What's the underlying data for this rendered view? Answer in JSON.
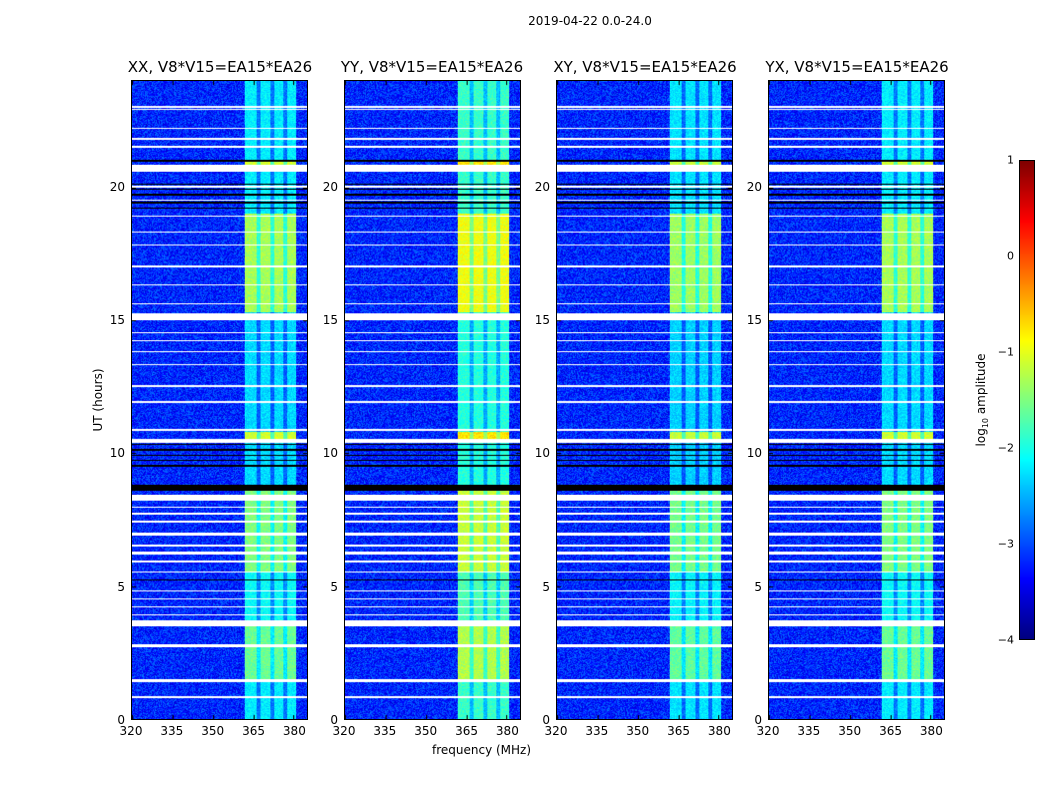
{
  "chart_data": {
    "type": "heatmap",
    "title": "2019-04-22 0.0-24.0",
    "xlabel": "frequency (MHz)",
    "ylabel": "UT (hours)",
    "xlim": [
      320,
      385
    ],
    "ylim": [
      0,
      24
    ],
    "xticks": [
      "320",
      "335",
      "350",
      "365",
      "380"
    ],
    "xtick_values": [
      320,
      335,
      350,
      365,
      380
    ],
    "yticks": [
      "0",
      "5",
      "10",
      "15",
      "20"
    ],
    "ytick_values": [
      0,
      5,
      10,
      15,
      20
    ],
    "panels": [
      {
        "title": "XX, V8*V15=EA15*EA26",
        "boost": 0
      },
      {
        "title": "YY, V8*V15=EA15*EA26",
        "boost": 0.35
      },
      {
        "title": "XY, V8*V15=EA15*EA26",
        "boost": -0.05
      },
      {
        "title": "YX, V8*V15=EA15*EA26",
        "boost": 0
      }
    ],
    "colorbar": {
      "label": "log10 amplitude",
      "label_main": "log",
      "label_sub": "10",
      "label_rest": " amplitude",
      "range": [
        -4,
        1
      ],
      "ticks": [
        "1",
        "0",
        "−1",
        "−2",
        "−3",
        "−4"
      ],
      "tick_values": [
        1,
        0,
        -1,
        -2,
        -3,
        -4
      ],
      "colormap": "jet"
    },
    "background_level": -3.2,
    "rfi_band_mhz": [
      362,
      381
    ],
    "rfi_gaps_mhz": [
      367,
      372,
      377
    ],
    "rfi_segments": [
      {
        "t0": 0,
        "t1": 1.5,
        "level": -2.2
      },
      {
        "t0": 1.5,
        "t1": 3.6,
        "level": -1.6
      },
      {
        "t0": 3.6,
        "t1": 5.5,
        "level": -2.1
      },
      {
        "t0": 5.5,
        "t1": 8.8,
        "level": -1.5
      },
      {
        "t0": 8.8,
        "t1": 10.5,
        "level": -2.3
      },
      {
        "t0": 10.5,
        "t1": 10.8,
        "level": -1.1
      },
      {
        "t0": 10.8,
        "t1": 15.3,
        "level": -2.3
      },
      {
        "t0": 15.3,
        "t1": 19.0,
        "level": -1.3
      },
      {
        "t0": 19.0,
        "t1": 20.7,
        "level": -2.2
      },
      {
        "t0": 20.7,
        "t1": 21.0,
        "level": -1.1
      },
      {
        "t0": 21.0,
        "t1": 24,
        "level": -2.2
      }
    ],
    "flagged_white_hours": [
      [
        0.8,
        0.85
      ],
      [
        1.4,
        1.5
      ],
      [
        2.7,
        2.8
      ],
      [
        3.5,
        3.7
      ],
      [
        3.9,
        3.95
      ],
      [
        4.2,
        4.25
      ],
      [
        4.5,
        4.55
      ],
      [
        4.8,
        4.85
      ],
      [
        5.5,
        5.55
      ],
      [
        5.9,
        5.95
      ],
      [
        6.2,
        6.3
      ],
      [
        6.5,
        6.55
      ],
      [
        6.9,
        7.0
      ],
      [
        7.4,
        7.45
      ],
      [
        7.7,
        7.75
      ],
      [
        7.95,
        8.0
      ],
      [
        8.2,
        8.45
      ],
      [
        10.4,
        10.55
      ],
      [
        10.85,
        10.9
      ],
      [
        11.9,
        11.95
      ],
      [
        12.5,
        12.55
      ],
      [
        13.3,
        13.35
      ],
      [
        13.8,
        13.85
      ],
      [
        14.2,
        14.25
      ],
      [
        14.5,
        14.55
      ],
      [
        15.0,
        15.25
      ],
      [
        15.6,
        15.65
      ],
      [
        16.3,
        16.35
      ],
      [
        17.0,
        17.05
      ],
      [
        17.8,
        17.85
      ],
      [
        18.3,
        18.35
      ],
      [
        18.9,
        18.95
      ],
      [
        19.5,
        19.55
      ],
      [
        20.0,
        20.05
      ],
      [
        20.6,
        20.85
      ],
      [
        21.5,
        21.55
      ],
      [
        21.8,
        21.85
      ],
      [
        22.2,
        22.25
      ],
      [
        22.9,
        22.95
      ],
      [
        23.0,
        23.05
      ]
    ],
    "flagged_black_hours": [
      [
        5.2,
        5.25
      ],
      [
        8.6,
        8.8
      ],
      [
        9.5,
        9.55
      ],
      [
        9.7,
        9.75
      ],
      [
        9.9,
        9.95
      ],
      [
        10.1,
        10.15
      ],
      [
        10.3,
        10.35
      ],
      [
        19.2,
        19.25
      ],
      [
        19.4,
        19.45
      ],
      [
        19.7,
        19.75
      ],
      [
        19.9,
        19.95
      ],
      [
        20.1,
        20.15
      ],
      [
        20.95,
        21.05
      ]
    ]
  }
}
